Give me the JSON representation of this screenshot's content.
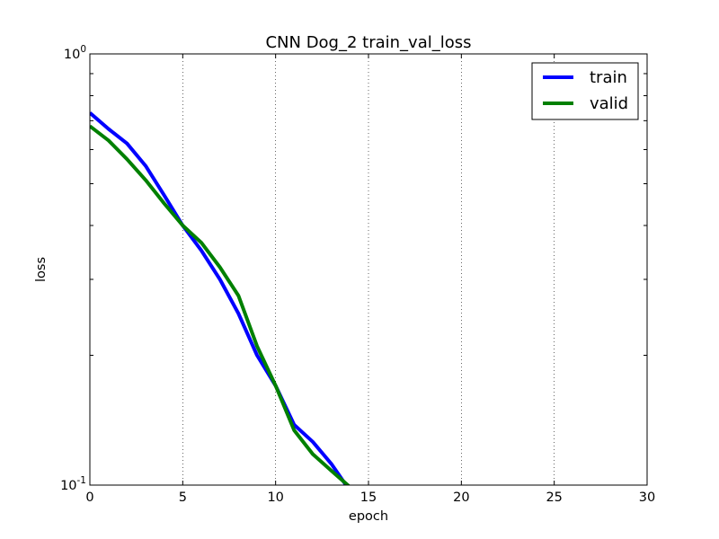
{
  "chart_data": {
    "type": "line",
    "title": "CNN Dog_2 train_val_loss",
    "xlabel": "epoch",
    "ylabel": "loss",
    "xlim": [
      0,
      30
    ],
    "ylim": [
      0.1,
      1
    ],
    "yscale": "log",
    "grid": "x-dotted",
    "legend_position": "top-right",
    "x_ticks": [
      "0",
      "5",
      "10",
      "15",
      "20",
      "25",
      "30"
    ],
    "y_tick_bases": [
      "10",
      "10"
    ],
    "y_tick_exponents": [
      "0",
      "-1"
    ],
    "series": [
      {
        "name": "train",
        "color": "#0000ff",
        "x": [
          0,
          1,
          2,
          3,
          4,
          5,
          6,
          7,
          8,
          9,
          10,
          11,
          12,
          13,
          14
        ],
        "values": [
          0.73,
          0.67,
          0.62,
          0.55,
          0.47,
          0.4,
          0.35,
          0.3,
          0.25,
          0.2,
          0.17,
          0.138,
          0.126,
          0.112,
          0.097
        ]
      },
      {
        "name": "valid",
        "color": "#008000",
        "x": [
          0,
          1,
          2,
          3,
          4,
          5,
          6,
          7,
          8,
          9,
          10,
          11,
          12,
          13,
          14
        ],
        "values": [
          0.68,
          0.63,
          0.57,
          0.51,
          0.45,
          0.4,
          0.365,
          0.32,
          0.275,
          0.21,
          0.17,
          0.134,
          0.118,
          0.108,
          0.099
        ]
      }
    ]
  }
}
